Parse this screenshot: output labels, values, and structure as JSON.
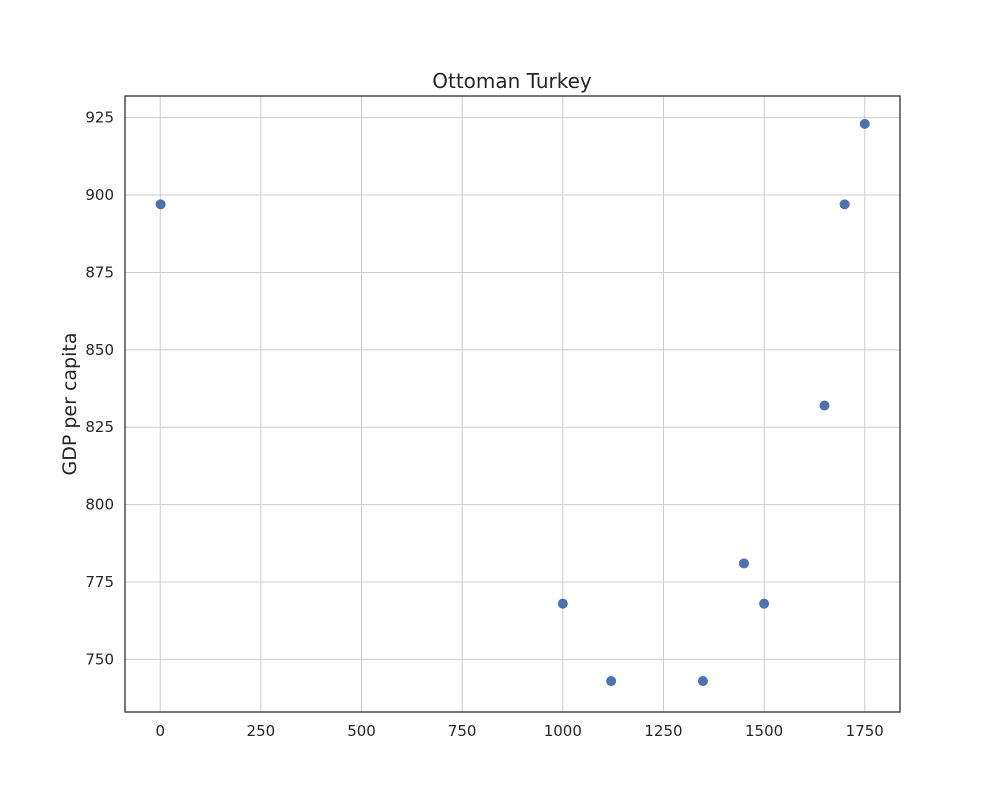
{
  "chart_data": {
    "type": "scatter",
    "title": "Ottoman Turkey",
    "xlabel": "",
    "ylabel": "GDP per capita",
    "xlim": [
      -87.5,
      1837.5
    ],
    "ylim": [
      733,
      932
    ],
    "xticks": [
      0,
      250,
      500,
      750,
      1000,
      1250,
      1500,
      1750
    ],
    "yticks": [
      750,
      775,
      800,
      825,
      850,
      875,
      900,
      925
    ],
    "grid": true,
    "marker_color": "#4c72b0",
    "grid_color": "#cccccc",
    "points": [
      {
        "x": 1,
        "y": 897
      },
      {
        "x": 1000,
        "y": 768
      },
      {
        "x": 1120,
        "y": 743
      },
      {
        "x": 1348,
        "y": 743
      },
      {
        "x": 1450,
        "y": 781
      },
      {
        "x": 1500,
        "y": 768
      },
      {
        "x": 1650,
        "y": 832
      },
      {
        "x": 1700,
        "y": 897
      },
      {
        "x": 1750,
        "y": 923
      }
    ]
  }
}
